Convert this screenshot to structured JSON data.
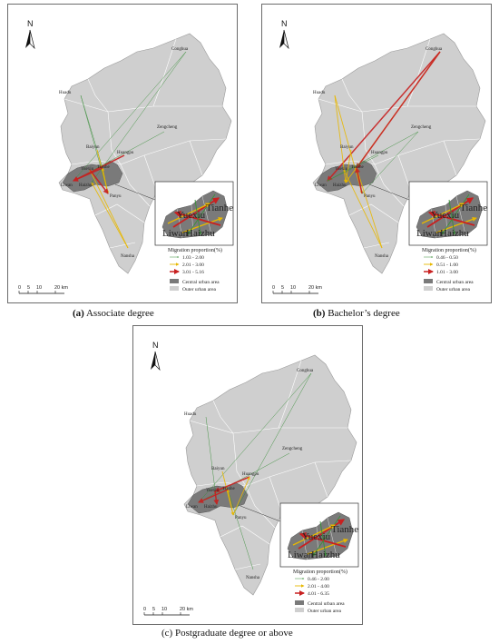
{
  "colors": {
    "outer_area": "#cfcfcf",
    "central_area": "#7a7a7a",
    "boundary": "#ffffff",
    "flow_low": "#3a8f3a",
    "flow_mid": "#e8b800",
    "flow_high": "#c82020"
  },
  "panels": [
    {
      "id": "a",
      "caption_letter": "(a)",
      "caption_text": " Associate degree",
      "legend": {
        "title": "Migration proportion(%)",
        "classes": [
          "1.03 - 2.00",
          "2.01 - 3.00",
          "3.01 - 5.16"
        ],
        "central": "Central urban area",
        "outer": "Outer urban area"
      }
    },
    {
      "id": "b",
      "caption_letter": "(b)",
      "caption_text": " Bachelor’s degree",
      "legend": {
        "title": "Migration proportion(%)",
        "classes": [
          "0.46 - 0.50",
          "0.51 - 1.00",
          "1.01 - 3.00"
        ],
        "central": "Central urban area",
        "outer": "Outer urban area"
      }
    },
    {
      "id": "c",
      "caption_letter": "(c)",
      "caption_text": " Postgraduate degree or above",
      "legend": {
        "title": "Migration proportion(%)",
        "classes": [
          "0.46 - 2.00",
          "2.01 - 4.00",
          "4.01 - 6.35"
        ],
        "central": "Central urban area",
        "outer": "Outer urban area"
      }
    }
  ],
  "map_labels": {
    "north": "N",
    "conghua": "Conghua",
    "huadu": "Huadu",
    "zengcheng": "Zengcheng",
    "baiyun": "Baiyun",
    "huangpu": "Huangpu",
    "panyu": "Panyu",
    "nansha": "Nansha",
    "yuexiu": "Yuexiu",
    "tianhe": "Tianhe",
    "liwan": "Liwan",
    "haizhu": "Haizhu"
  },
  "scale_bar": {
    "ticks": [
      "0",
      "5",
      "10",
      "20 km"
    ]
  }
}
